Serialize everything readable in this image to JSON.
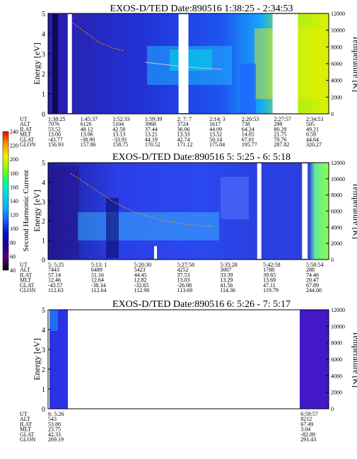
{
  "chart_data": [
    {
      "type": "heatmap",
      "title": "EXOS-D/TED   Date:890516  1:38:25 - 2:34:53",
      "ylabel": "Energy [eV]",
      "y2label": "Temperature [K]",
      "ylim": [
        0,
        5
      ],
      "y2lim": [
        0,
        12000
      ],
      "yticks": [
        0,
        1,
        2,
        3,
        4,
        5
      ],
      "y2ticks": [
        0,
        2000,
        4000,
        6000,
        8000,
        10000,
        12000
      ],
      "data_gaps": [
        [
          0.07,
          0.085
        ],
        [
          0.465,
          0.5
        ],
        [
          0.8,
          0.89
        ]
      ],
      "table": {
        "row_labels": [
          "UT",
          "ALT",
          "ILAT",
          "MLT",
          "GLAT",
          "GLON"
        ],
        "columns": [
          [
            "1:38:25",
            "7076",
            "53.52",
            "13.00",
            "-43.77",
            "156.93"
          ],
          [
            "1:45:37",
            "6126",
            "48.12",
            "13.06",
            "-38.90",
            "157.86"
          ],
          [
            "1:52:33",
            "5104",
            "42.58",
            "13.13",
            "-33.91",
            "158.75"
          ],
          [
            "1:59:39",
            "3968",
            "37.44",
            "13.21",
            "44.19",
            "170.52"
          ],
          [
            "2: 7: 7",
            "3724",
            "36.06",
            "13.33",
            "42.74",
            "171.12"
          ],
          [
            "2:14: 3",
            "1617",
            "44.09",
            "13.52",
            "50.14",
            "175.84"
          ],
          [
            "2:20:53",
            "738",
            "64.24",
            "14.05",
            "67.01",
            "195.77"
          ],
          [
            "2:27:57",
            "298",
            "80.29",
            "21.75",
            "70.76",
            "287.82"
          ],
          [
            "2:34:53",
            "505",
            "49.21",
            "0.59",
            "44.64",
            "320.27"
          ]
        ]
      }
    },
    {
      "type": "heatmap",
      "title": "EXOS-D/TED   Date:890516  5: 5:25 - 6: 5:18",
      "ylabel": "Energy [eV]",
      "y2label": "Temperature [K]",
      "ylim": [
        0,
        5
      ],
      "y2lim": [
        0,
        12000
      ],
      "yticks": [
        0,
        1,
        2,
        3,
        4,
        5
      ],
      "y2ticks": [
        0,
        2000,
        4000,
        6000,
        8000,
        10000,
        12000
      ],
      "data_gaps": [
        [
          0.745,
          0.76
        ],
        [
          0.905,
          0.925
        ]
      ],
      "colorbar": {
        "label": "Second Harmonic Current",
        "ticks": [
          "40",
          "60",
          "80",
          "100",
          "120",
          "140",
          "160",
          "180",
          "200",
          "220",
          "240"
        ],
        "range": [
          40,
          240
        ]
      },
      "table": {
        "row_labels": [
          "UT",
          "ALT",
          "ILAT",
          "MLT",
          "GLAT",
          "GLON"
        ],
        "columns": [
          [
            "5: 5:25",
            "7443",
            "57.14",
            "12.46",
            "-43.57",
            "112.63"
          ],
          [
            "5:13: 1",
            "6489",
            "51.16",
            "12.64",
            "-38.34",
            "112.64"
          ],
          [
            "5:20:30",
            "5423",
            "44.45",
            "12.82",
            "-32.65",
            "112.90"
          ],
          [
            "5:27:58",
            "4252",
            "37.53",
            "13.03",
            "-26.98",
            "113.69"
          ],
          [
            "5:35:28",
            "3007",
            "33.39",
            "13.29",
            "41.56",
            "114.36"
          ],
          [
            "5:42:58",
            "1788",
            "39.65",
            "13.69",
            "47.11",
            "119.79"
          ],
          [
            "5:58:54",
            "288",
            "74.46",
            "20.47",
            "67.89",
            "244.00"
          ]
        ]
      }
    },
    {
      "type": "heatmap",
      "title": "EXOS-D/TED   Date:890516  6: 5:26 - 7: 5:17",
      "ylabel": "Energy [eV]",
      "y2label": "Temperature [K]",
      "ylim": [
        0,
        5
      ],
      "y2lim": [
        0,
        12000
      ],
      "yticks": [
        0,
        1,
        2,
        3,
        4,
        5
      ],
      "y2ticks": [
        0,
        2000,
        4000,
        6000,
        8000,
        10000,
        12000
      ],
      "table": {
        "row_labels": [
          "UT",
          "ALT",
          "ILAT",
          "MLT",
          "GLAT",
          "GLON"
        ],
        "columns": [
          [
            "6: 5:26",
            "543",
            "53.80",
            "23.75",
            "42.33",
            "269.19"
          ],
          [
            "6:59:57",
            "8212",
            "67.49",
            "3.04",
            "-82.89",
            "291.43"
          ]
        ]
      }
    }
  ],
  "colors": {
    "background_fill": "#2a32e6",
    "colorbar_stops": [
      "#000000",
      "#5a0078",
      "#1e0096",
      "#0014c8",
      "#1e5aff",
      "#00b4ff",
      "#00dcdc",
      "#00ff9e",
      "#78ff00",
      "#f0f000",
      "#ff9600",
      "#f00000"
    ]
  }
}
